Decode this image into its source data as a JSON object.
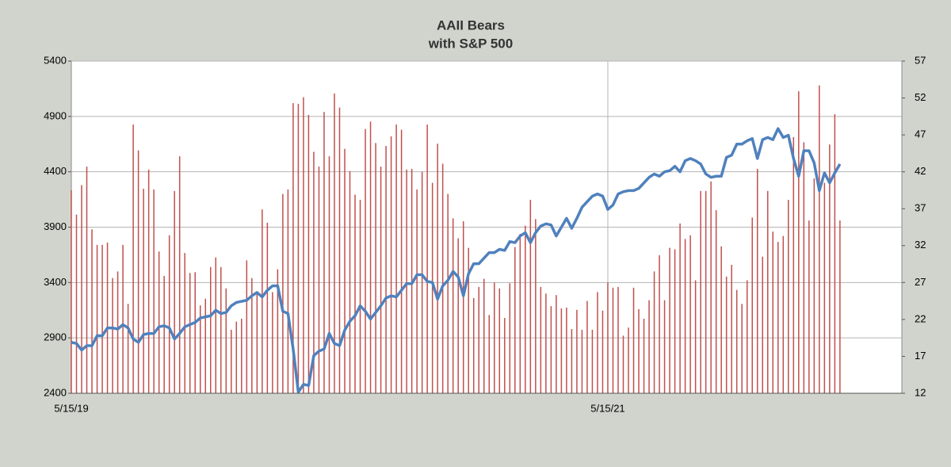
{
  "chart_data": {
    "type": "combo",
    "title": "AAII Bears",
    "subtitle": "with S&P 500",
    "categories": [
      "5/15/19",
      null,
      null,
      null,
      null,
      null,
      null,
      null,
      null,
      null,
      null,
      null,
      null,
      null,
      null,
      null,
      null,
      null,
      null,
      null,
      null,
      null,
      null,
      null,
      null,
      null,
      null,
      null,
      null,
      null,
      null,
      null,
      null,
      null,
      null,
      null,
      null,
      null,
      null,
      null,
      null,
      null,
      null,
      null,
      null,
      null,
      null,
      null,
      null,
      null,
      null,
      null,
      null,
      null,
      null,
      null,
      null,
      null,
      null,
      null,
      null,
      null,
      null,
      null,
      null,
      null,
      null,
      null,
      null,
      null,
      null,
      null,
      null,
      null,
      null,
      null,
      null,
      null,
      null,
      null,
      null,
      null,
      null,
      null,
      null,
      null,
      null,
      null,
      null,
      null,
      null,
      null,
      null,
      null,
      null,
      null,
      null,
      null,
      null,
      null,
      null,
      null,
      null,
      null,
      "5/15/21",
      null,
      null,
      null,
      null,
      null,
      null,
      null,
      null,
      null,
      null,
      null,
      null,
      null,
      null,
      null,
      null,
      null,
      null,
      null,
      null,
      null,
      null,
      null,
      null,
      null,
      null,
      null,
      null,
      null,
      null,
      null,
      null,
      null,
      null,
      null,
      null,
      null,
      null,
      null,
      null,
      null,
      null,
      null,
      null,
      null
    ],
    "ylim": [
      2400,
      5400
    ],
    "yticks": [
      2400,
      2900,
      3400,
      3900,
      4400,
      4900,
      5400
    ],
    "y2lim": [
      12,
      57
    ],
    "y2ticks": [
      12,
      17,
      22,
      27,
      32,
      37,
      42,
      47,
      52,
      57
    ],
    "grid": true,
    "series": [
      {
        "type": "bar",
        "axis": "y2",
        "color": "#c0504d",
        "values": [
          39.5,
          36.2,
          40.2,
          42.7,
          34.2,
          32.1,
          32.1,
          32.4,
          27.6,
          28.5,
          32.1,
          24.1,
          48.4,
          44.9,
          39.7,
          42.3,
          39.6,
          31.2,
          27.9,
          33.4,
          39.4,
          44.1,
          31.0,
          28.3,
          28.4,
          23.9,
          24.8,
          29.1,
          30.4,
          29.1,
          26.2,
          20.6,
          21.7,
          22.1,
          30.0,
          27.6,
          25.7,
          36.9,
          35.1,
          25.7,
          28.8,
          39.0,
          39.6,
          51.3,
          51.2,
          52.1,
          49.7,
          44.7,
          42.7,
          50.1,
          44.1,
          52.6,
          50.7,
          45.1,
          42.1,
          38.9,
          38.2,
          47.8,
          48.8,
          45.9,
          42.7,
          45.5,
          46.8,
          48.4,
          47.7,
          42.3,
          42.4,
          39.6,
          42.0,
          48.4,
          40.5,
          45.8,
          43.1,
          39.0,
          35.7,
          33.0,
          35.3,
          31.7,
          24.9,
          26.4,
          27.5,
          22.6,
          27.0,
          26.2,
          22.2,
          26.9,
          31.8,
          33.6,
          34.7,
          38.2,
          35.6,
          26.4,
          25.5,
          23.8,
          25.3,
          23.5,
          23.6,
          20.7,
          23.3,
          20.6,
          24.5,
          20.6,
          25.7,
          23.2,
          27.0,
          26.3,
          26.4,
          19.8,
          20.9,
          26.3,
          23.4,
          22.1,
          24.6,
          28.5,
          30.7,
          24.6,
          31.7,
          31.5,
          35.0,
          32.9,
          33.4,
          27.3,
          39.4,
          39.4,
          40.7,
          36.8,
          31.9,
          27.8,
          29.4,
          26.0,
          24.1,
          27.3,
          35.8,
          42.4,
          30.5,
          39.4,
          33.9,
          32.5,
          33.3,
          38.2,
          46.7,
          52.9,
          46.0,
          35.4,
          41.1,
          53.7,
          40.5,
          45.7,
          49.8,
          35.4
        ]
      },
      {
        "type": "line",
        "color": "#4f81bd",
        "values": [
          2860,
          2850,
          2790,
          2830,
          2830,
          2920,
          2920,
          2990,
          2990,
          2980,
          3020,
          2990,
          2890,
          2860,
          2930,
          2940,
          2940,
          3000,
          3010,
          2990,
          2890,
          2940,
          3000,
          3020,
          3040,
          3080,
          3090,
          3100,
          3150,
          3120,
          3130,
          3190,
          3220,
          3230,
          3240,
          3280,
          3310,
          3270,
          3330,
          3370,
          3370,
          3140,
          3120,
          2800,
          2410,
          2480,
          2470,
          2740,
          2780,
          2800,
          2940,
          2850,
          2830,
          2970,
          3050,
          3100,
          3190,
          3140,
          3070,
          3130,
          3190,
          3260,
          3280,
          3270,
          3330,
          3390,
          3390,
          3470,
          3470,
          3410,
          3400,
          3250,
          3370,
          3420,
          3500,
          3450,
          3280,
          3480,
          3570,
          3570,
          3620,
          3670,
          3670,
          3700,
          3690,
          3770,
          3760,
          3820,
          3850,
          3760,
          3850,
          3910,
          3930,
          3920,
          3820,
          3900,
          3980,
          3890,
          3980,
          4080,
          4130,
          4180,
          4200,
          4180,
          4060,
          4100,
          4200,
          4220,
          4230,
          4230,
          4250,
          4300,
          4350,
          4380,
          4360,
          4400,
          4410,
          4450,
          4400,
          4500,
          4520,
          4500,
          4470,
          4380,
          4350,
          4360,
          4360,
          4530,
          4550,
          4650,
          4650,
          4680,
          4700,
          4520,
          4690,
          4710,
          4690,
          4790,
          4710,
          4730,
          4520,
          4360,
          4590,
          4590,
          4480,
          4230,
          4390,
          4300,
          4390,
          4470
        ]
      }
    ]
  }
}
